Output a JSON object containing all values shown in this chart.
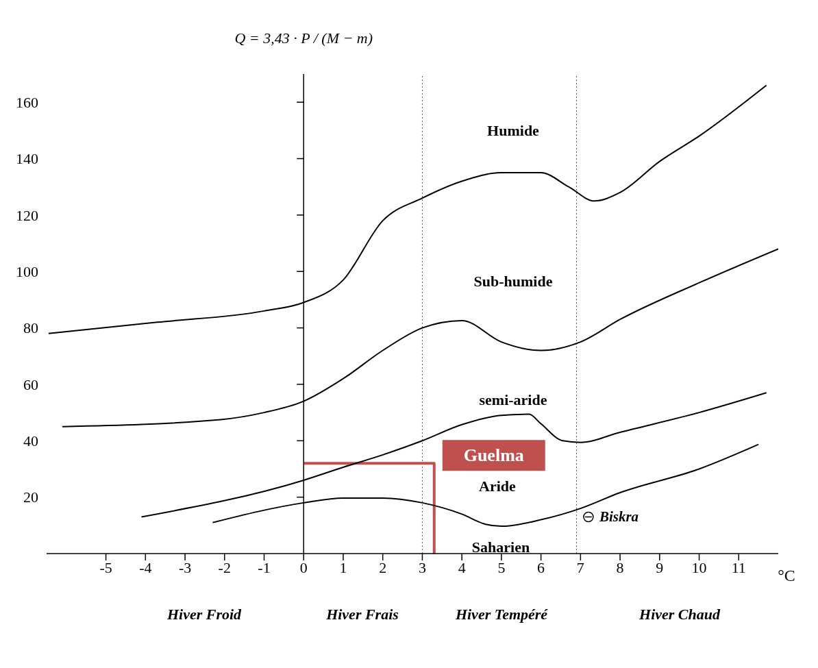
{
  "chart_data": {
    "type": "line",
    "ylabel": "Q = 3,43 · P / (M − m)",
    "xlabel": "°C",
    "xlim": [
      -6.5,
      12
    ],
    "ylim": [
      0,
      170
    ],
    "xticks": [
      -5,
      -4,
      -3,
      -2,
      -1,
      0,
      1,
      2,
      3,
      4,
      5,
      6,
      7,
      8,
      9,
      10,
      11
    ],
    "yticks": [
      20,
      40,
      60,
      80,
      100,
      120,
      140,
      160
    ],
    "grid": false,
    "legend": false,
    "marker": "none",
    "line_style": "solid",
    "series": [
      {
        "name": "Guelma",
        "color": "#c0504d",
        "x": [
          0,
          3.3,
          3.3
        ],
        "values": [
          32,
          32,
          0
        ]
      },
      {
        "color": "#000000",
        "x": [
          -6.45,
          -3.7,
          -1,
          0,
          1,
          2,
          3,
          4,
          5,
          6,
          6.7,
          7.35,
          8,
          9,
          10,
          11.7
        ],
        "values": [
          78,
          82,
          86,
          89,
          97,
          118,
          126,
          132,
          135,
          135,
          130,
          125,
          128,
          139,
          148,
          166
        ]
      },
      {
        "color": "#000000",
        "x": [
          -6.1,
          -2.1,
          -1,
          0,
          1,
          2,
          3,
          4,
          5,
          6,
          7,
          8,
          10,
          12
        ],
        "values": [
          45,
          47.5,
          50,
          54,
          62,
          72,
          80,
          82.6,
          75,
          72,
          75,
          83,
          96,
          108
        ]
      },
      {
        "color": "#000000",
        "x": [
          -4.1,
          0,
          1,
          2,
          3,
          4,
          5,
          5.7,
          6,
          6.55,
          7,
          8,
          10,
          11.7
        ],
        "values": [
          13,
          26,
          30.6,
          35,
          40,
          45.7,
          49,
          49.4,
          46,
          40,
          39.4,
          43,
          50,
          57
        ]
      },
      {
        "color": "#000000",
        "x": [
          -2.3,
          0,
          1,
          2,
          3,
          4,
          4.6,
          5,
          6,
          7,
          8,
          10,
          11.5
        ],
        "values": [
          11,
          18,
          19.7,
          19.7,
          18,
          14,
          10.4,
          9.7,
          12,
          16,
          21.6,
          30,
          38.7
        ]
      },
      {
        "type": "scatter",
        "color": "#000000",
        "marker": "circle",
        "x": [
          7.2
        ],
        "values": [
          13
        ]
      }
    ],
    "ref_lines": [
      {
        "axis": "x",
        "value": 3,
        "line_style": "dotted",
        "color": "#555555"
      },
      {
        "axis": "x",
        "value": 6.9,
        "line_style": "dotted",
        "color": "#555555"
      }
    ],
    "annotations": [
      "Humide",
      "Sub-humide",
      "semi-aride",
      "Aride",
      "Saharien",
      "Hiver Froid",
      "Hiver Frais",
      "Hiver Tempéré",
      "Hiver Chaud",
      {
        "text": "Biskra",
        "x": 7.2,
        "y": 13
      }
    ]
  }
}
